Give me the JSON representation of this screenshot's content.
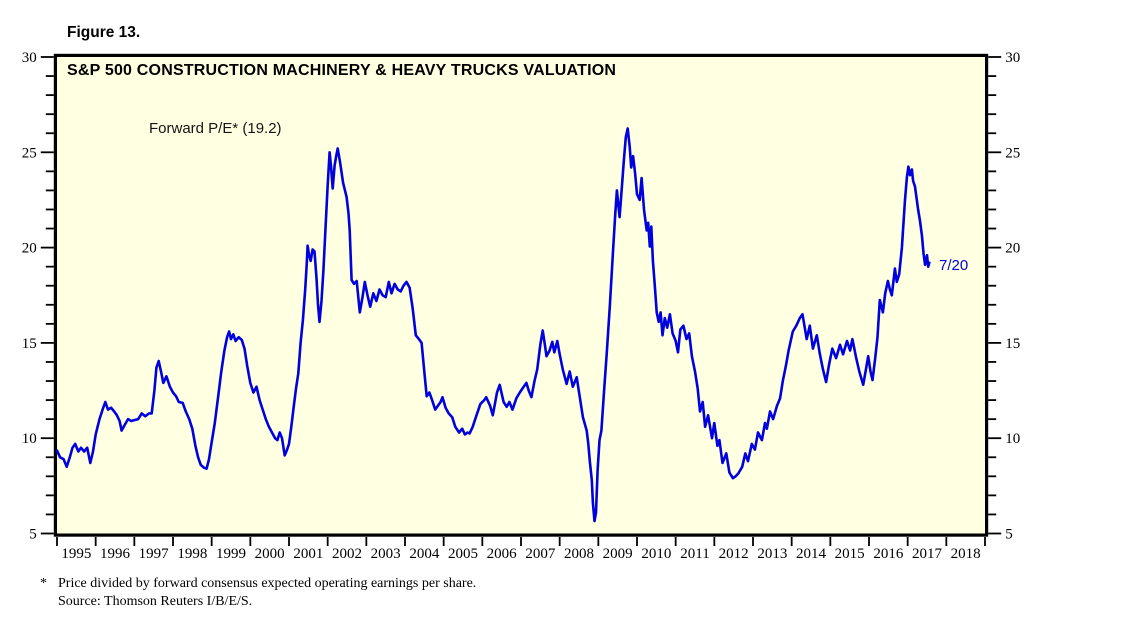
{
  "figure_label": "Figure 13.",
  "chart": {
    "title": "S&P 500 CONSTRUCTION MACHINERY & HEAVY TRUCKS VALUATION",
    "series_label": "Forward P/E* (19.2)",
    "end_label": "7/20",
    "colors": {
      "line": "#0101DF",
      "annotation": "#0101DF",
      "plot_background": "#FFFFE2",
      "frame": "#000000",
      "text": "#000000"
    }
  },
  "footnote": {
    "marker": "*",
    "line1": "Price divided by forward consensus expected operating earnings per share.",
    "line2": "Source: Thomson Reuters I/B/E/S."
  },
  "chart_data": {
    "type": "line",
    "title": "S&P 500 CONSTRUCTION MACHINERY & HEAVY TRUCKS VALUATION",
    "series_name": "Forward P/E",
    "current_value": 19.2,
    "current_value_date_label": "7/20",
    "grid": false,
    "legend_position": "none",
    "x_range": [
      1995,
      2019
    ],
    "y_range": [
      5,
      30
    ],
    "y_ticks": [
      5,
      10,
      15,
      20,
      25,
      30
    ],
    "y_minor_step": 1,
    "x_year_labels": [
      "1995",
      "1996",
      "1997",
      "1998",
      "1999",
      "2000",
      "2001",
      "2002",
      "2003",
      "2004",
      "2005",
      "2006",
      "2007",
      "2008",
      "2009",
      "2010",
      "2011",
      "2012",
      "2013",
      "2014",
      "2015",
      "2016",
      "2017",
      "2018"
    ],
    "points": [
      [
        1995.0,
        9.35
      ],
      [
        1995.08,
        9.0
      ],
      [
        1995.17,
        8.9
      ],
      [
        1995.25,
        8.5
      ],
      [
        1995.33,
        9.0
      ],
      [
        1995.4,
        9.5
      ],
      [
        1995.47,
        9.7
      ],
      [
        1995.55,
        9.3
      ],
      [
        1995.62,
        9.5
      ],
      [
        1995.7,
        9.3
      ],
      [
        1995.78,
        9.5
      ],
      [
        1995.86,
        8.7
      ],
      [
        1995.93,
        9.3
      ],
      [
        1996.0,
        10.2
      ],
      [
        1996.1,
        11.0
      ],
      [
        1996.18,
        11.5
      ],
      [
        1996.25,
        11.9
      ],
      [
        1996.32,
        11.5
      ],
      [
        1996.4,
        11.6
      ],
      [
        1996.48,
        11.4
      ],
      [
        1996.55,
        11.2
      ],
      [
        1996.62,
        10.9
      ],
      [
        1996.67,
        10.4
      ],
      [
        1996.75,
        10.7
      ],
      [
        1996.84,
        11.0
      ],
      [
        1996.92,
        10.9
      ],
      [
        1997.0,
        10.95
      ],
      [
        1997.1,
        11.0
      ],
      [
        1997.19,
        11.3
      ],
      [
        1997.28,
        11.15
      ],
      [
        1997.38,
        11.3
      ],
      [
        1997.45,
        11.3
      ],
      [
        1997.52,
        12.5
      ],
      [
        1997.57,
        13.7
      ],
      [
        1997.63,
        14.05
      ],
      [
        1997.7,
        13.4
      ],
      [
        1997.75,
        12.9
      ],
      [
        1997.83,
        13.25
      ],
      [
        1997.92,
        12.7
      ],
      [
        1998.0,
        12.4
      ],
      [
        1998.08,
        12.2
      ],
      [
        1998.15,
        11.9
      ],
      [
        1998.25,
        11.85
      ],
      [
        1998.33,
        11.4
      ],
      [
        1998.42,
        11.0
      ],
      [
        1998.5,
        10.5
      ],
      [
        1998.58,
        9.6
      ],
      [
        1998.65,
        9.0
      ],
      [
        1998.72,
        8.6
      ],
      [
        1998.8,
        8.45
      ],
      [
        1998.87,
        8.4
      ],
      [
        1998.93,
        8.9
      ],
      [
        1999.0,
        9.8
      ],
      [
        1999.08,
        10.8
      ],
      [
        1999.17,
        12.2
      ],
      [
        1999.25,
        13.5
      ],
      [
        1999.33,
        14.6
      ],
      [
        1999.4,
        15.3
      ],
      [
        1999.45,
        15.6
      ],
      [
        1999.5,
        15.2
      ],
      [
        1999.56,
        15.45
      ],
      [
        1999.62,
        15.1
      ],
      [
        1999.7,
        15.3
      ],
      [
        1999.78,
        15.15
      ],
      [
        1999.85,
        14.7
      ],
      [
        1999.92,
        13.8
      ],
      [
        2000.0,
        12.9
      ],
      [
        2000.08,
        12.4
      ],
      [
        2000.16,
        12.7
      ],
      [
        2000.24,
        12.0
      ],
      [
        2000.32,
        11.5
      ],
      [
        2000.4,
        11.0
      ],
      [
        2000.48,
        10.6
      ],
      [
        2000.56,
        10.3
      ],
      [
        2000.64,
        10.0
      ],
      [
        2000.7,
        9.9
      ],
      [
        2000.76,
        10.3
      ],
      [
        2000.82,
        10.0
      ],
      [
        2000.89,
        9.1
      ],
      [
        2000.95,
        9.4
      ],
      [
        2001.0,
        9.7
      ],
      [
        2001.06,
        10.6
      ],
      [
        2001.12,
        11.6
      ],
      [
        2001.18,
        12.6
      ],
      [
        2001.24,
        13.4
      ],
      [
        2001.3,
        15.0
      ],
      [
        2001.36,
        16.2
      ],
      [
        2001.42,
        17.8
      ],
      [
        2001.46,
        19.2
      ],
      [
        2001.48,
        20.1
      ],
      [
        2001.52,
        19.6
      ],
      [
        2001.56,
        19.3
      ],
      [
        2001.61,
        19.9
      ],
      [
        2001.66,
        19.8
      ],
      [
        2001.71,
        18.4
      ],
      [
        2001.75,
        17.0
      ],
      [
        2001.79,
        16.1
      ],
      [
        2001.84,
        17.2
      ],
      [
        2001.89,
        18.8
      ],
      [
        2001.94,
        20.8
      ],
      [
        2002.0,
        23.3
      ],
      [
        2002.05,
        25.0
      ],
      [
        2002.09,
        24.2
      ],
      [
        2002.13,
        23.1
      ],
      [
        2002.18,
        24.3
      ],
      [
        2002.22,
        24.8
      ],
      [
        2002.26,
        25.2
      ],
      [
        2002.32,
        24.5
      ],
      [
        2002.4,
        23.4
      ],
      [
        2002.49,
        22.65
      ],
      [
        2002.54,
        21.8
      ],
      [
        2002.57,
        20.9
      ],
      [
        2002.62,
        18.3
      ],
      [
        2002.68,
        18.1
      ],
      [
        2002.75,
        18.25
      ],
      [
        2002.83,
        16.6
      ],
      [
        2002.9,
        17.4
      ],
      [
        2002.96,
        18.2
      ],
      [
        2003.03,
        17.5
      ],
      [
        2003.1,
        16.9
      ],
      [
        2003.18,
        17.6
      ],
      [
        2003.26,
        17.2
      ],
      [
        2003.34,
        17.8
      ],
      [
        2003.42,
        17.5
      ],
      [
        2003.5,
        17.4
      ],
      [
        2003.58,
        18.2
      ],
      [
        2003.65,
        17.6
      ],
      [
        2003.73,
        18.1
      ],
      [
        2003.81,
        17.8
      ],
      [
        2003.89,
        17.7
      ],
      [
        2003.96,
        18.0
      ],
      [
        2004.04,
        18.2
      ],
      [
        2004.12,
        17.9
      ],
      [
        2004.2,
        16.8
      ],
      [
        2004.28,
        15.4
      ],
      [
        2004.36,
        15.2
      ],
      [
        2004.43,
        15.0
      ],
      [
        2004.5,
        13.5
      ],
      [
        2004.56,
        12.2
      ],
      [
        2004.63,
        12.4
      ],
      [
        2004.7,
        12.0
      ],
      [
        2004.78,
        11.5
      ],
      [
        2004.85,
        11.7
      ],
      [
        2004.92,
        11.9
      ],
      [
        2004.97,
        12.15
      ],
      [
        2005.05,
        11.6
      ],
      [
        2005.13,
        11.3
      ],
      [
        2005.22,
        11.1
      ],
      [
        2005.3,
        10.6
      ],
      [
        2005.4,
        10.3
      ],
      [
        2005.48,
        10.5
      ],
      [
        2005.55,
        10.2
      ],
      [
        2005.62,
        10.3
      ],
      [
        2005.67,
        10.25
      ],
      [
        2005.75,
        10.6
      ],
      [
        2005.85,
        11.2
      ],
      [
        2005.95,
        11.8
      ],
      [
        2006.05,
        12.0
      ],
      [
        2006.1,
        12.15
      ],
      [
        2006.2,
        11.7
      ],
      [
        2006.27,
        11.2
      ],
      [
        2006.38,
        12.4
      ],
      [
        2006.45,
        12.8
      ],
      [
        2006.55,
        11.9
      ],
      [
        2006.63,
        11.65
      ],
      [
        2006.7,
        11.9
      ],
      [
        2006.78,
        11.5
      ],
      [
        2006.88,
        12.1
      ],
      [
        2006.97,
        12.4
      ],
      [
        2007.07,
        12.7
      ],
      [
        2007.14,
        12.9
      ],
      [
        2007.2,
        12.5
      ],
      [
        2007.27,
        12.15
      ],
      [
        2007.35,
        13.0
      ],
      [
        2007.42,
        13.6
      ],
      [
        2007.5,
        14.9
      ],
      [
        2007.56,
        15.65
      ],
      [
        2007.61,
        15.0
      ],
      [
        2007.66,
        14.3
      ],
      [
        2007.74,
        14.6
      ],
      [
        2007.81,
        15.05
      ],
      [
        2007.86,
        14.5
      ],
      [
        2007.94,
        15.1
      ],
      [
        2008.0,
        14.4
      ],
      [
        2008.08,
        13.6
      ],
      [
        2008.18,
        12.85
      ],
      [
        2008.26,
        13.5
      ],
      [
        2008.34,
        12.7
      ],
      [
        2008.44,
        13.2
      ],
      [
        2008.52,
        12.15
      ],
      [
        2008.6,
        11.1
      ],
      [
        2008.7,
        10.4
      ],
      [
        2008.74,
        9.7
      ],
      [
        2008.78,
        8.8
      ],
      [
        2008.83,
        7.8
      ],
      [
        2008.86,
        6.6
      ],
      [
        2008.9,
        5.65
      ],
      [
        2008.94,
        6.1
      ],
      [
        2008.98,
        8.3
      ],
      [
        2009.03,
        9.9
      ],
      [
        2009.08,
        10.4
      ],
      [
        2009.15,
        12.5
      ],
      [
        2009.22,
        14.5
      ],
      [
        2009.3,
        17.0
      ],
      [
        2009.38,
        19.8
      ],
      [
        2009.44,
        21.8
      ],
      [
        2009.48,
        23.0
      ],
      [
        2009.52,
        22.2
      ],
      [
        2009.55,
        21.6
      ],
      [
        2009.61,
        23.2
      ],
      [
        2009.66,
        24.6
      ],
      [
        2009.71,
        25.8
      ],
      [
        2009.76,
        26.25
      ],
      [
        2009.81,
        25.3
      ],
      [
        2009.85,
        24.2
      ],
      [
        2009.9,
        24.8
      ],
      [
        2009.95,
        23.9
      ],
      [
        2010.0,
        22.8
      ],
      [
        2010.07,
        22.5
      ],
      [
        2010.12,
        23.65
      ],
      [
        2010.18,
        22.0
      ],
      [
        2010.25,
        20.9
      ],
      [
        2010.29,
        21.3
      ],
      [
        2010.33,
        20.05
      ],
      [
        2010.37,
        21.1
      ],
      [
        2010.41,
        19.3
      ],
      [
        2010.46,
        18.0
      ],
      [
        2010.51,
        16.6
      ],
      [
        2010.56,
        16.1
      ],
      [
        2010.61,
        16.6
      ],
      [
        2010.66,
        15.4
      ],
      [
        2010.72,
        16.3
      ],
      [
        2010.78,
        15.8
      ],
      [
        2010.85,
        16.5
      ],
      [
        2010.92,
        15.5
      ],
      [
        2011.0,
        15.1
      ],
      [
        2011.06,
        14.5
      ],
      [
        2011.12,
        15.7
      ],
      [
        2011.2,
        15.9
      ],
      [
        2011.28,
        15.2
      ],
      [
        2011.35,
        15.5
      ],
      [
        2011.42,
        14.3
      ],
      [
        2011.5,
        13.5
      ],
      [
        2011.57,
        12.6
      ],
      [
        2011.63,
        11.4
      ],
      [
        2011.7,
        11.9
      ],
      [
        2011.76,
        10.6
      ],
      [
        2011.84,
        11.2
      ],
      [
        2011.94,
        10.0
      ],
      [
        2012.0,
        10.8
      ],
      [
        2012.08,
        9.6
      ],
      [
        2012.13,
        9.9
      ],
      [
        2012.21,
        8.7
      ],
      [
        2012.31,
        9.2
      ],
      [
        2012.39,
        8.2
      ],
      [
        2012.48,
        7.9
      ],
      [
        2012.55,
        8.0
      ],
      [
        2012.62,
        8.15
      ],
      [
        2012.72,
        8.5
      ],
      [
        2012.8,
        9.2
      ],
      [
        2012.87,
        8.8
      ],
      [
        2012.97,
        9.7
      ],
      [
        2013.05,
        9.4
      ],
      [
        2013.13,
        10.3
      ],
      [
        2013.23,
        9.9
      ],
      [
        2013.31,
        10.8
      ],
      [
        2013.36,
        10.5
      ],
      [
        2013.44,
        11.4
      ],
      [
        2013.52,
        11.0
      ],
      [
        2013.62,
        11.7
      ],
      [
        2013.7,
        12.1
      ],
      [
        2013.77,
        13.0
      ],
      [
        2013.85,
        13.8
      ],
      [
        2013.92,
        14.6
      ],
      [
        2014.03,
        15.6
      ],
      [
        2014.12,
        15.9
      ],
      [
        2014.21,
        16.3
      ],
      [
        2014.28,
        16.5
      ],
      [
        2014.39,
        15.2
      ],
      [
        2014.47,
        15.9
      ],
      [
        2014.55,
        14.7
      ],
      [
        2014.65,
        15.4
      ],
      [
        2014.73,
        14.4
      ],
      [
        2014.81,
        13.6
      ],
      [
        2014.89,
        12.95
      ],
      [
        2014.97,
        13.9
      ],
      [
        2015.05,
        14.7
      ],
      [
        2015.15,
        14.2
      ],
      [
        2015.25,
        14.9
      ],
      [
        2015.33,
        14.4
      ],
      [
        2015.43,
        15.1
      ],
      [
        2015.51,
        14.6
      ],
      [
        2015.57,
        15.2
      ],
      [
        2015.67,
        14.2
      ],
      [
        2015.75,
        13.5
      ],
      [
        2015.85,
        12.8
      ],
      [
        2015.92,
        13.6
      ],
      [
        2015.98,
        14.3
      ],
      [
        2016.04,
        13.5
      ],
      [
        2016.09,
        13.05
      ],
      [
        2016.16,
        14.2
      ],
      [
        2016.22,
        15.3
      ],
      [
        2016.28,
        17.25
      ],
      [
        2016.36,
        16.6
      ],
      [
        2016.42,
        17.6
      ],
      [
        2016.49,
        18.25
      ],
      [
        2016.54,
        17.8
      ],
      [
        2016.59,
        17.5
      ],
      [
        2016.67,
        18.9
      ],
      [
        2016.72,
        18.2
      ],
      [
        2016.78,
        18.6
      ],
      [
        2016.85,
        20.0
      ],
      [
        2016.88,
        20.9
      ],
      [
        2016.93,
        22.5
      ],
      [
        2016.98,
        23.7
      ],
      [
        2017.02,
        24.25
      ],
      [
        2017.06,
        23.8
      ],
      [
        2017.11,
        24.1
      ],
      [
        2017.14,
        23.5
      ],
      [
        2017.19,
        23.2
      ],
      [
        2017.27,
        22.0
      ],
      [
        2017.32,
        21.4
      ],
      [
        2017.37,
        20.6
      ],
      [
        2017.41,
        19.7
      ],
      [
        2017.45,
        19.1
      ],
      [
        2017.5,
        19.6
      ],
      [
        2017.53,
        19.0
      ],
      [
        2017.56,
        19.2
      ]
    ]
  }
}
